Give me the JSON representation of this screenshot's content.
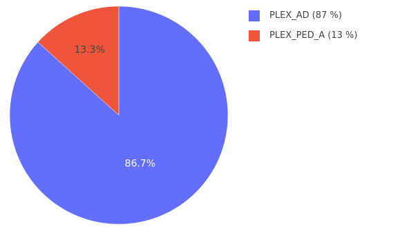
{
  "chart_data": {
    "type": "pie",
    "title": "",
    "slices": [
      {
        "label": "PLEX_AD (87 %)",
        "value": 86.7,
        "display": "86.7%",
        "color": "#636efa",
        "text_color": "#ffffff"
      },
      {
        "label": "PLEX_PED_A (13 %)",
        "value": 13.3,
        "display": "13.3%",
        "color": "#ef553b",
        "text_color": "#444444"
      }
    ],
    "start_angle": "12 o'clock",
    "direction": "counterclockwise",
    "legend_position": "top-right"
  }
}
